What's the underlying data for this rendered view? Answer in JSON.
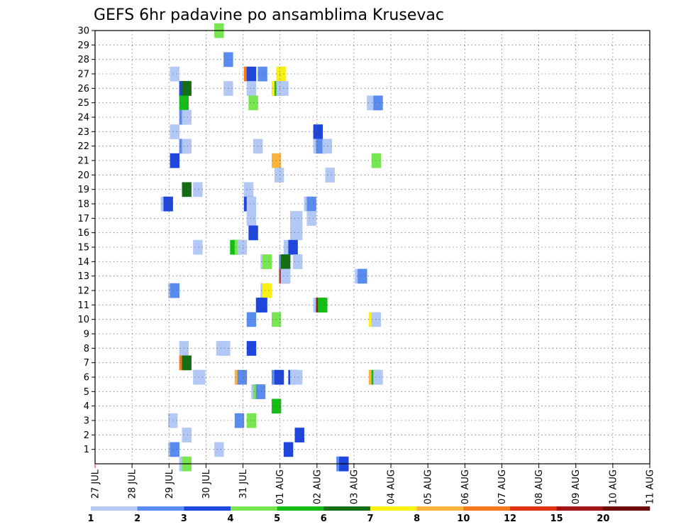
{
  "chart_data": {
    "type": "heatmap",
    "title": "GEFS 6hr padavine po ansamblima Krusevac",
    "xlabel": "",
    "ylabel": "",
    "x_tick_labels": [
      "27 JUL",
      "28 JUL",
      "29 JUL",
      "30 JUL",
      "31 JUL",
      "01 AUG",
      "02 AUG",
      "03 AUG",
      "04 AUG",
      "05 AUG",
      "06 AUG",
      "07 AUG",
      "08 AUG",
      "09 AUG",
      "10 AUG",
      "11 AUG"
    ],
    "x_range_days": [
      0,
      15
    ],
    "y_range": [
      0,
      30
    ],
    "y_ticks": [
      1,
      2,
      3,
      4,
      5,
      6,
      7,
      8,
      9,
      10,
      11,
      12,
      13,
      14,
      15,
      16,
      17,
      18,
      19,
      20,
      21,
      22,
      23,
      24,
      25,
      26,
      27,
      28,
      29,
      30
    ],
    "grid": true,
    "colorbar": {
      "labels": [
        "1",
        "2",
        "3",
        "4",
        "5",
        "6",
        "7",
        "8",
        "10",
        "12",
        "15",
        "20"
      ],
      "colors": [
        "#b4c8f5",
        "#5a8cf0",
        "#1e46dc",
        "#78e650",
        "#14be14",
        "#146e14",
        "#faf014",
        "#fab43c",
        "#f5781e",
        "#e13214",
        "#a01414",
        "#6e0a0a"
      ]
    },
    "cells": [
      {
        "m": 30,
        "t": 13.4,
        "c": 3
      },
      {
        "m": 28,
        "t": 14.4,
        "c": 1
      },
      {
        "m": 27,
        "t": 8.6,
        "c": 0
      },
      {
        "m": 27,
        "t": 16.6,
        "c": 8
      },
      {
        "m": 27,
        "t": 16.9,
        "c": 2
      },
      {
        "m": 27,
        "t": 18.1,
        "c": 1
      },
      {
        "m": 27,
        "t": 20.1,
        "c": 6
      },
      {
        "m": 26,
        "t": 9.6,
        "c": 2
      },
      {
        "m": 26,
        "t": 9.9,
        "c": 5
      },
      {
        "m": 26,
        "t": 14.4,
        "c": 0
      },
      {
        "m": 26,
        "t": 16.9,
        "c": 0
      },
      {
        "m": 26,
        "t": 19.6,
        "c": 6
      },
      {
        "m": 26,
        "t": 19.9,
        "c": 4
      },
      {
        "m": 26,
        "t": 20.1,
        "c": 0
      },
      {
        "m": 26,
        "t": 20.4,
        "c": 0
      },
      {
        "m": 25,
        "t": 9.6,
        "c": 4
      },
      {
        "m": 25,
        "t": 17.1,
        "c": 3
      },
      {
        "m": 25,
        "t": 29.9,
        "c": 0
      },
      {
        "m": 25,
        "t": 30.4,
        "c": 0
      },
      {
        "m": 25,
        "t": 30.6,
        "c": 1
      },
      {
        "m": 24,
        "t": 9.6,
        "c": 1
      },
      {
        "m": 24,
        "t": 9.9,
        "c": 0
      },
      {
        "m": 23,
        "t": 8.6,
        "c": 0
      },
      {
        "m": 23,
        "t": 24.1,
        "c": 2
      },
      {
        "m": 22,
        "t": 9.6,
        "c": 1
      },
      {
        "m": 22,
        "t": 9.9,
        "c": 0
      },
      {
        "m": 22,
        "t": 17.6,
        "c": 0
      },
      {
        "m": 22,
        "t": 24.1,
        "c": 0
      },
      {
        "m": 22,
        "t": 24.4,
        "c": 1
      },
      {
        "m": 22,
        "t": 25.1,
        "c": 0
      },
      {
        "m": 21,
        "t": 8.6,
        "c": 2
      },
      {
        "m": 21,
        "t": 19.6,
        "c": 7
      },
      {
        "m": 21,
        "t": 30.4,
        "c": 3
      },
      {
        "m": 20,
        "t": 19.9,
        "c": 0
      },
      {
        "m": 20,
        "t": 25.4,
        "c": 0
      },
      {
        "m": 19,
        "t": 9.9,
        "c": 5
      },
      {
        "m": 19,
        "t": 11.1,
        "c": 0
      },
      {
        "m": 19,
        "t": 16.6,
        "c": 0
      },
      {
        "m": 18,
        "t": 7.6,
        "c": 0
      },
      {
        "m": 18,
        "t": 7.9,
        "c": 2
      },
      {
        "m": 18,
        "t": 16.6,
        "c": 2
      },
      {
        "m": 18,
        "t": 16.9,
        "c": 0
      },
      {
        "m": 18,
        "t": 23.1,
        "c": 0
      },
      {
        "m": 18,
        "t": 23.4,
        "c": 1
      },
      {
        "m": 17,
        "t": 16.9,
        "c": 0
      },
      {
        "m": 17,
        "t": 21.6,
        "c": 0
      },
      {
        "m": 17,
        "t": 21.9,
        "c": 0
      },
      {
        "m": 17,
        "t": 23.4,
        "c": 0
      },
      {
        "m": 16,
        "t": 17.1,
        "c": 2
      },
      {
        "m": 16,
        "t": 21.6,
        "c": 0
      },
      {
        "m": 16,
        "t": 21.9,
        "c": 0
      },
      {
        "m": 15,
        "t": 11.1,
        "c": 0
      },
      {
        "m": 15,
        "t": 15.1,
        "c": 4
      },
      {
        "m": 15,
        "t": 15.4,
        "c": 4
      },
      {
        "m": 15,
        "t": 15.6,
        "c": 3
      },
      {
        "m": 15,
        "t": 15.9,
        "c": 0
      },
      {
        "m": 15,
        "t": 20.9,
        "c": 0
      },
      {
        "m": 15,
        "t": 21.1,
        "c": 0
      },
      {
        "m": 15,
        "t": 21.4,
        "c": 2
      },
      {
        "m": 14,
        "t": 18.4,
        "c": 0
      },
      {
        "m": 14,
        "t": 18.6,
        "c": 3
      },
      {
        "m": 14,
        "t": 20.4,
        "c": 1
      },
      {
        "m": 14,
        "t": 20.6,
        "c": 5
      },
      {
        "m": 14,
        "t": 21.9,
        "c": 0
      },
      {
        "m": 13,
        "t": 20.4,
        "c": 9
      },
      {
        "m": 13,
        "t": 20.6,
        "c": 0
      },
      {
        "m": 13,
        "t": 28.6,
        "c": 0
      },
      {
        "m": 13,
        "t": 28.9,
        "c": 1
      },
      {
        "m": 12,
        "t": 8.4,
        "c": 0
      },
      {
        "m": 12,
        "t": 8.6,
        "c": 1
      },
      {
        "m": 12,
        "t": 18.4,
        "c": 0
      },
      {
        "m": 12,
        "t": 18.6,
        "c": 6
      },
      {
        "m": 11,
        "t": 17.9,
        "c": 2
      },
      {
        "m": 11,
        "t": 18.1,
        "c": 2
      },
      {
        "m": 11,
        "t": 24.1,
        "c": 0
      },
      {
        "m": 11,
        "t": 24.4,
        "c": 10
      },
      {
        "m": 11,
        "t": 24.6,
        "c": 4
      },
      {
        "m": 10,
        "t": 16.9,
        "c": 1
      },
      {
        "m": 10,
        "t": 19.6,
        "c": 3
      },
      {
        "m": 10,
        "t": 30.1,
        "c": 6
      },
      {
        "m": 10,
        "t": 30.4,
        "c": 0
      },
      {
        "m": 8,
        "t": 9.6,
        "c": 0
      },
      {
        "m": 8,
        "t": 13.6,
        "c": 0
      },
      {
        "m": 8,
        "t": 13.9,
        "c": 0
      },
      {
        "m": 8,
        "t": 14.1,
        "c": 0
      },
      {
        "m": 8,
        "t": 16.9,
        "c": 2
      },
      {
        "m": 7,
        "t": 9.6,
        "c": 8
      },
      {
        "m": 7,
        "t": 9.9,
        "c": 5
      },
      {
        "m": 6,
        "t": 11.1,
        "c": 0
      },
      {
        "m": 6,
        "t": 11.4,
        "c": 0
      },
      {
        "m": 6,
        "t": 15.6,
        "c": 7
      },
      {
        "m": 6,
        "t": 15.9,
        "c": 1
      },
      {
        "m": 6,
        "t": 19.6,
        "c": 1
      },
      {
        "m": 6,
        "t": 19.9,
        "c": 2
      },
      {
        "m": 6,
        "t": 21.4,
        "c": 2
      },
      {
        "m": 6,
        "t": 21.6,
        "c": 0
      },
      {
        "m": 6,
        "t": 21.9,
        "c": 0
      },
      {
        "m": 6,
        "t": 30.1,
        "c": 7
      },
      {
        "m": 6,
        "t": 30.4,
        "c": 4
      },
      {
        "m": 6,
        "t": 30.6,
        "c": 0
      },
      {
        "m": 5,
        "t": 17.4,
        "c": 0
      },
      {
        "m": 5,
        "t": 17.6,
        "c": 3
      },
      {
        "m": 5,
        "t": 17.9,
        "c": 1
      },
      {
        "m": 4,
        "t": 19.6,
        "c": 4
      },
      {
        "m": 3,
        "t": 8.4,
        "c": 0
      },
      {
        "m": 3,
        "t": 15.6,
        "c": 1
      },
      {
        "m": 3,
        "t": 16.9,
        "c": 3
      },
      {
        "m": 2,
        "t": 9.9,
        "c": 0
      },
      {
        "m": 2,
        "t": 22.1,
        "c": 2
      },
      {
        "m": 1,
        "t": 8.4,
        "c": 0
      },
      {
        "m": 1,
        "t": 8.6,
        "c": 1
      },
      {
        "m": 1,
        "t": 13.4,
        "c": 0
      },
      {
        "m": 1,
        "t": 20.9,
        "c": 2
      },
      {
        "m": 0,
        "t": 9.6,
        "c": 0
      },
      {
        "m": 0,
        "t": 9.9,
        "c": 3
      },
      {
        "m": 0,
        "t": 26.6,
        "c": 1
      },
      {
        "m": 0,
        "t": 26.9,
        "c": 2
      }
    ]
  }
}
